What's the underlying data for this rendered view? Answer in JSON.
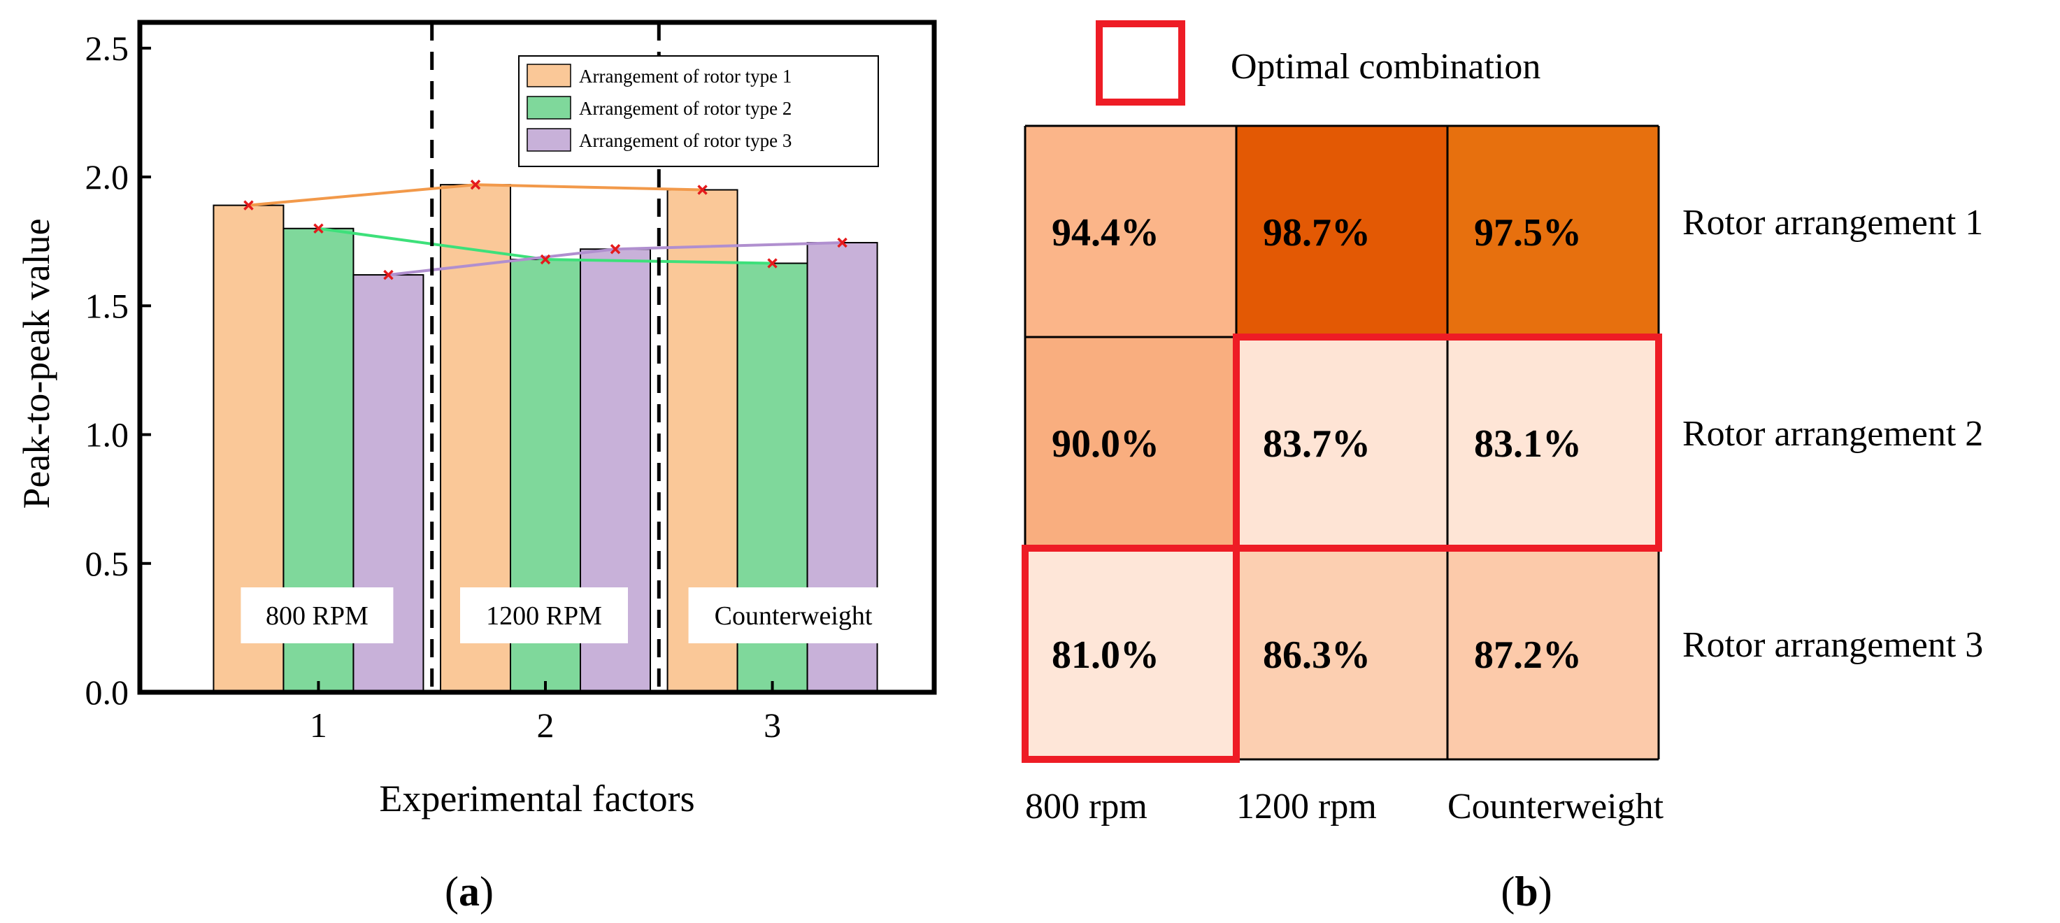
{
  "chart_data": [
    {
      "type": "bar",
      "panel_label": "a",
      "xlabel": "Experimental factors",
      "ylabel": "Peak-to-peak value",
      "categories": [
        "1",
        "2",
        "3"
      ],
      "factor_labels": [
        "800 RPM",
        "1200 RPM",
        "Counterweight"
      ],
      "ylim": [
        0.0,
        2.6
      ],
      "yticks": [
        "0.0",
        "0.5",
        "1.0",
        "1.5",
        "2.0",
        "2.5"
      ],
      "ytick_values": [
        0.0,
        0.5,
        1.0,
        1.5,
        2.0,
        2.5
      ],
      "legend_position": "top-right",
      "series": [
        {
          "name": "Arrangement of rotor type 1",
          "values": [
            1.89,
            1.97,
            1.95
          ],
          "color": "#FAC898",
          "line_color": "#F2994A"
        },
        {
          "name": "Arrangement of rotor type 2",
          "values": [
            1.8,
            1.68,
            1.665
          ],
          "color": "#7FD89B",
          "line_color": "#3DE07A"
        },
        {
          "name": "Arrangement of rotor type 3",
          "values": [
            1.62,
            1.72,
            1.745
          ],
          "color": "#C8B1D9",
          "line_color": "#B08FCF"
        }
      ],
      "marker_color": "#E41A1C"
    },
    {
      "type": "heatmap",
      "panel_label": "b",
      "legend_label": "Optimal combination",
      "columns": [
        "800 rpm",
        "1200 rpm",
        "Counterweight"
      ],
      "rows": [
        "Rotor arrangement 1",
        "Rotor arrangement 2",
        "Rotor arrangement 3"
      ],
      "values": [
        [
          94.4,
          98.7,
          97.5
        ],
        [
          90.0,
          83.7,
          83.1
        ],
        [
          81.0,
          86.3,
          87.2
        ]
      ],
      "labels": [
        [
          "94.4%",
          "98.7%",
          "97.5%"
        ],
        [
          "90.0%",
          "83.7%",
          "83.1%"
        ],
        [
          "81.0%",
          "86.3%",
          "87.2%"
        ]
      ],
      "optimal_cells": [
        [
          [
            1,
            1
          ],
          [
            1,
            2
          ]
        ],
        [
          [
            2,
            0
          ]
        ]
      ],
      "highlight_color": "#EE1C25",
      "cell_colors": [
        [
          "#FBB589",
          "#E35904",
          "#E7700E"
        ],
        [
          "#F9AE7F",
          "#FEE4D5",
          "#FEE5D6"
        ],
        [
          "#FEE6D8",
          "#FCCFB1",
          "#FCCAAA"
        ]
      ]
    }
  ]
}
